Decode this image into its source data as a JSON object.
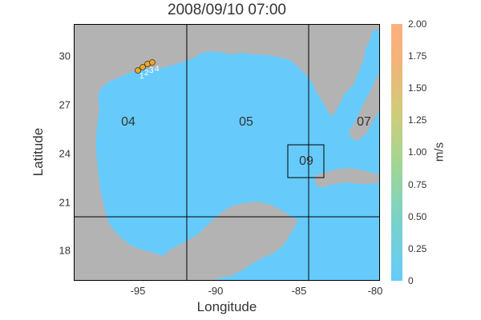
{
  "title": "2008/09/10 07:00",
  "xlabel": "Longitude",
  "ylabel": "Latitude",
  "x_ticks": [
    "-95",
    "-90",
    "-85",
    "-80"
  ],
  "y_ticks": [
    "30",
    "27",
    "24",
    "21",
    "18"
  ],
  "colorbar": {
    "label": "m/s",
    "ticks": [
      "0",
      "0.25",
      "0.50",
      "0.75",
      "1.00",
      "1.25",
      "1.50",
      "1.75",
      "2.00"
    ]
  },
  "regions": [
    "04",
    "05",
    "07",
    "09"
  ],
  "stations": [
    "1",
    "2",
    "3",
    "4"
  ],
  "colors": {
    "water": "#66cbfb",
    "land": "#b3b3b3",
    "station": "#f5a623"
  }
}
